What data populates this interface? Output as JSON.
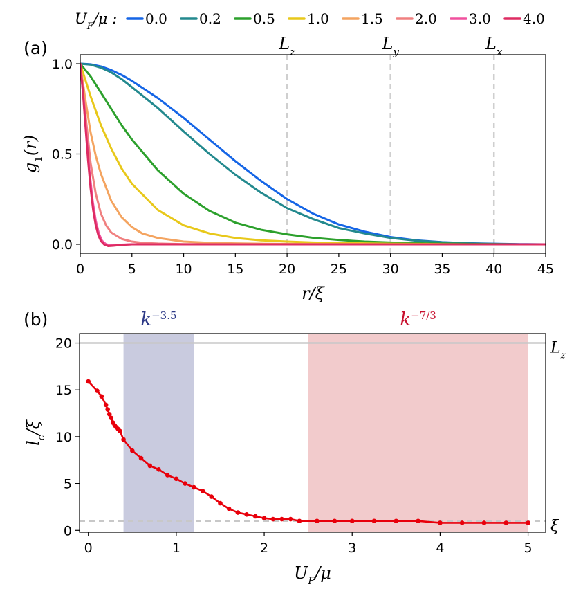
{
  "chart_data": [
    {
      "type": "line",
      "panel_label": "(a)",
      "title": "",
      "xlabel": "r/ξ",
      "ylabel": "g1(r)",
      "xlim": [
        0,
        45
      ],
      "ylim": [
        -0.05,
        1.05
      ],
      "xticks": [
        0,
        5,
        10,
        15,
        20,
        25,
        30,
        35,
        40,
        45
      ],
      "xtick_labels": [
        "0",
        "5",
        "10",
        "15",
        "20",
        "25",
        "30",
        "35",
        "40",
        "45"
      ],
      "yticks": [
        0,
        0.5,
        1
      ],
      "ytick_labels": [
        "0.0",
        "0.5",
        "1.0"
      ],
      "grid": false,
      "legend": {
        "placement": "top",
        "title": "U_F/μ :",
        "entries": [
          "0.0",
          "0.2",
          "0.5",
          "1.0",
          "1.5",
          "2.0",
          "3.0",
          "4.0"
        ]
      },
      "vlines": [
        {
          "x": 20,
          "label": "L_z"
        },
        {
          "x": 30,
          "label": "L_y"
        },
        {
          "x": 40,
          "label": "L_x"
        }
      ],
      "series": [
        {
          "name": "0.0",
          "color": "#1565e6",
          "x": [
            0,
            1,
            2,
            3,
            4,
            5,
            7.5,
            10,
            12.5,
            15,
            17.5,
            20,
            22.5,
            25,
            27.5,
            30,
            32.5,
            35,
            37.5,
            40,
            42.5,
            45
          ],
          "y": [
            1.0,
            0.997,
            0.985,
            0.965,
            0.938,
            0.905,
            0.81,
            0.7,
            0.58,
            0.46,
            0.35,
            0.25,
            0.17,
            0.11,
            0.07,
            0.04,
            0.022,
            0.012,
            0.006,
            0.003,
            0.001,
            0.0
          ]
        },
        {
          "name": "0.2",
          "color": "#23898e",
          "x": [
            0,
            1,
            2,
            3,
            4,
            5,
            7.5,
            10,
            12.5,
            15,
            17.5,
            20,
            22.5,
            25,
            27.5,
            30,
            32.5,
            35,
            37.5,
            40,
            42.5,
            45
          ],
          "y": [
            1.0,
            0.995,
            0.978,
            0.952,
            0.915,
            0.87,
            0.755,
            0.625,
            0.5,
            0.385,
            0.285,
            0.2,
            0.14,
            0.09,
            0.06,
            0.035,
            0.02,
            0.011,
            0.005,
            0.002,
            0.0,
            0.0
          ]
        },
        {
          "name": "0.5",
          "color": "#2ca02c",
          "x": [
            0,
            1,
            2,
            3,
            4,
            5,
            7.5,
            10,
            12.5,
            15,
            17.5,
            20,
            22.5,
            25,
            27.5,
            30,
            32.5,
            35,
            37.5,
            40,
            42.5,
            45
          ],
          "y": [
            1.0,
            0.93,
            0.84,
            0.75,
            0.66,
            0.58,
            0.41,
            0.28,
            0.185,
            0.12,
            0.08,
            0.055,
            0.036,
            0.024,
            0.015,
            0.01,
            0.006,
            0.004,
            0.002,
            0.001,
            0.0,
            0.0
          ]
        },
        {
          "name": "1.0",
          "color": "#e8c81a",
          "x": [
            0,
            1,
            2,
            3,
            4,
            5,
            7.5,
            10,
            12.5,
            15,
            17.5,
            20,
            22.5,
            25,
            27.5,
            30,
            32.5,
            35,
            37.5,
            40,
            42.5,
            45
          ],
          "y": [
            1.0,
            0.82,
            0.66,
            0.53,
            0.42,
            0.335,
            0.19,
            0.105,
            0.06,
            0.035,
            0.022,
            0.015,
            0.01,
            0.007,
            0.005,
            0.003,
            0.002,
            0.001,
            0.0,
            0.0,
            0.0,
            0.0
          ]
        },
        {
          "name": "1.5",
          "color": "#f4a460",
          "x": [
            0,
            0.5,
            1,
            1.5,
            2,
            3,
            4,
            5,
            6,
            7.5,
            10,
            12.5,
            15,
            17.5,
            20,
            25,
            30,
            35,
            40,
            45
          ],
          "y": [
            1.0,
            0.8,
            0.62,
            0.49,
            0.39,
            0.24,
            0.15,
            0.095,
            0.06,
            0.035,
            0.015,
            0.008,
            0.005,
            0.003,
            0.002,
            0.001,
            0.0,
            0.0,
            0.0,
            0.0
          ]
        },
        {
          "name": "2.0",
          "color": "#f08080",
          "x": [
            0,
            0.5,
            1,
            1.5,
            2,
            2.5,
            3,
            4,
            5,
            6,
            7.5,
            10,
            15,
            20,
            30,
            45
          ],
          "y": [
            1.0,
            0.72,
            0.45,
            0.28,
            0.17,
            0.105,
            0.065,
            0.03,
            0.015,
            0.008,
            0.004,
            0.001,
            0.0,
            0.0,
            0.0,
            0.0
          ]
        },
        {
          "name": "3.0",
          "color": "#f0509e",
          "x": [
            0,
            0.3,
            0.6,
            0.9,
            1.2,
            1.5,
            1.8,
            2.1,
            2.5,
            3,
            4,
            5,
            10,
            20,
            45
          ],
          "y": [
            1.0,
            0.82,
            0.6,
            0.4,
            0.24,
            0.13,
            0.06,
            0.02,
            0.0,
            -0.006,
            -0.002,
            0.0,
            0.0,
            0.0,
            0.0
          ]
        },
        {
          "name": "4.0",
          "color": "#de2c62",
          "x": [
            0,
            0.25,
            0.5,
            0.75,
            1.0,
            1.25,
            1.5,
            1.75,
            2.0,
            2.3,
            2.7,
            3.2,
            4,
            5,
            10,
            20,
            45
          ],
          "y": [
            1.0,
            0.85,
            0.66,
            0.47,
            0.31,
            0.19,
            0.105,
            0.05,
            0.018,
            0.0,
            -0.01,
            -0.008,
            -0.003,
            0.0,
            0.0,
            0.0,
            0.0
          ]
        }
      ]
    },
    {
      "type": "line",
      "panel_label": "(b)",
      "title": "",
      "xlabel": "U_F/μ",
      "ylabel": "l_c/ξ",
      "xlim": [
        -0.1,
        5.2
      ],
      "ylim": [
        -0.2,
        21
      ],
      "xticks": [
        0,
        1,
        2,
        3,
        4,
        5
      ],
      "xtick_labels": [
        "0",
        "1",
        "2",
        "3",
        "4",
        "5"
      ],
      "yticks": [
        0,
        5,
        10,
        15,
        20
      ],
      "ytick_labels": [
        "0",
        "5",
        "10",
        "15",
        "20"
      ],
      "grid": false,
      "shaded_regions": [
        {
          "x0": 0.4,
          "x1": 1.2,
          "color": "#c9cbdf",
          "label": "k",
          "exponent": "−3.5",
          "label_color": "#2e3a87"
        },
        {
          "x0": 2.5,
          "x1": 5.0,
          "color": "#f2cbcc",
          "label": "k",
          "exponent": "−7/3",
          "label_color": "#c8102e"
        }
      ],
      "hlines": [
        {
          "y": 20,
          "style": "solid",
          "label": "L_z"
        },
        {
          "y": 1,
          "style": "dashed",
          "label": "ξ"
        }
      ],
      "series": [
        {
          "name": "l_c/ξ",
          "color": "#e8000b",
          "x": [
            0,
            0.1,
            0.15,
            0.2,
            0.22,
            0.24,
            0.26,
            0.28,
            0.3,
            0.32,
            0.34,
            0.36,
            0.4,
            0.5,
            0.6,
            0.7,
            0.8,
            0.9,
            1.0,
            1.1,
            1.2,
            1.3,
            1.4,
            1.5,
            1.6,
            1.7,
            1.8,
            1.9,
            2.0,
            2.1,
            2.2,
            2.3,
            2.4,
            2.6,
            2.8,
            3.0,
            3.25,
            3.5,
            3.75,
            4.0,
            4.25,
            4.5,
            4.75,
            5.0
          ],
          "y": [
            15.9,
            14.9,
            14.3,
            13.4,
            12.9,
            12.4,
            12.0,
            11.5,
            11.2,
            11.0,
            10.8,
            10.6,
            9.7,
            8.5,
            7.7,
            6.9,
            6.5,
            5.9,
            5.5,
            5.0,
            4.6,
            4.2,
            3.6,
            2.9,
            2.3,
            1.9,
            1.7,
            1.5,
            1.3,
            1.2,
            1.2,
            1.2,
            1.0,
            1.0,
            1.0,
            1.0,
            1.0,
            1.0,
            1.0,
            0.8,
            0.8,
            0.8,
            0.8,
            0.8
          ]
        }
      ]
    }
  ]
}
